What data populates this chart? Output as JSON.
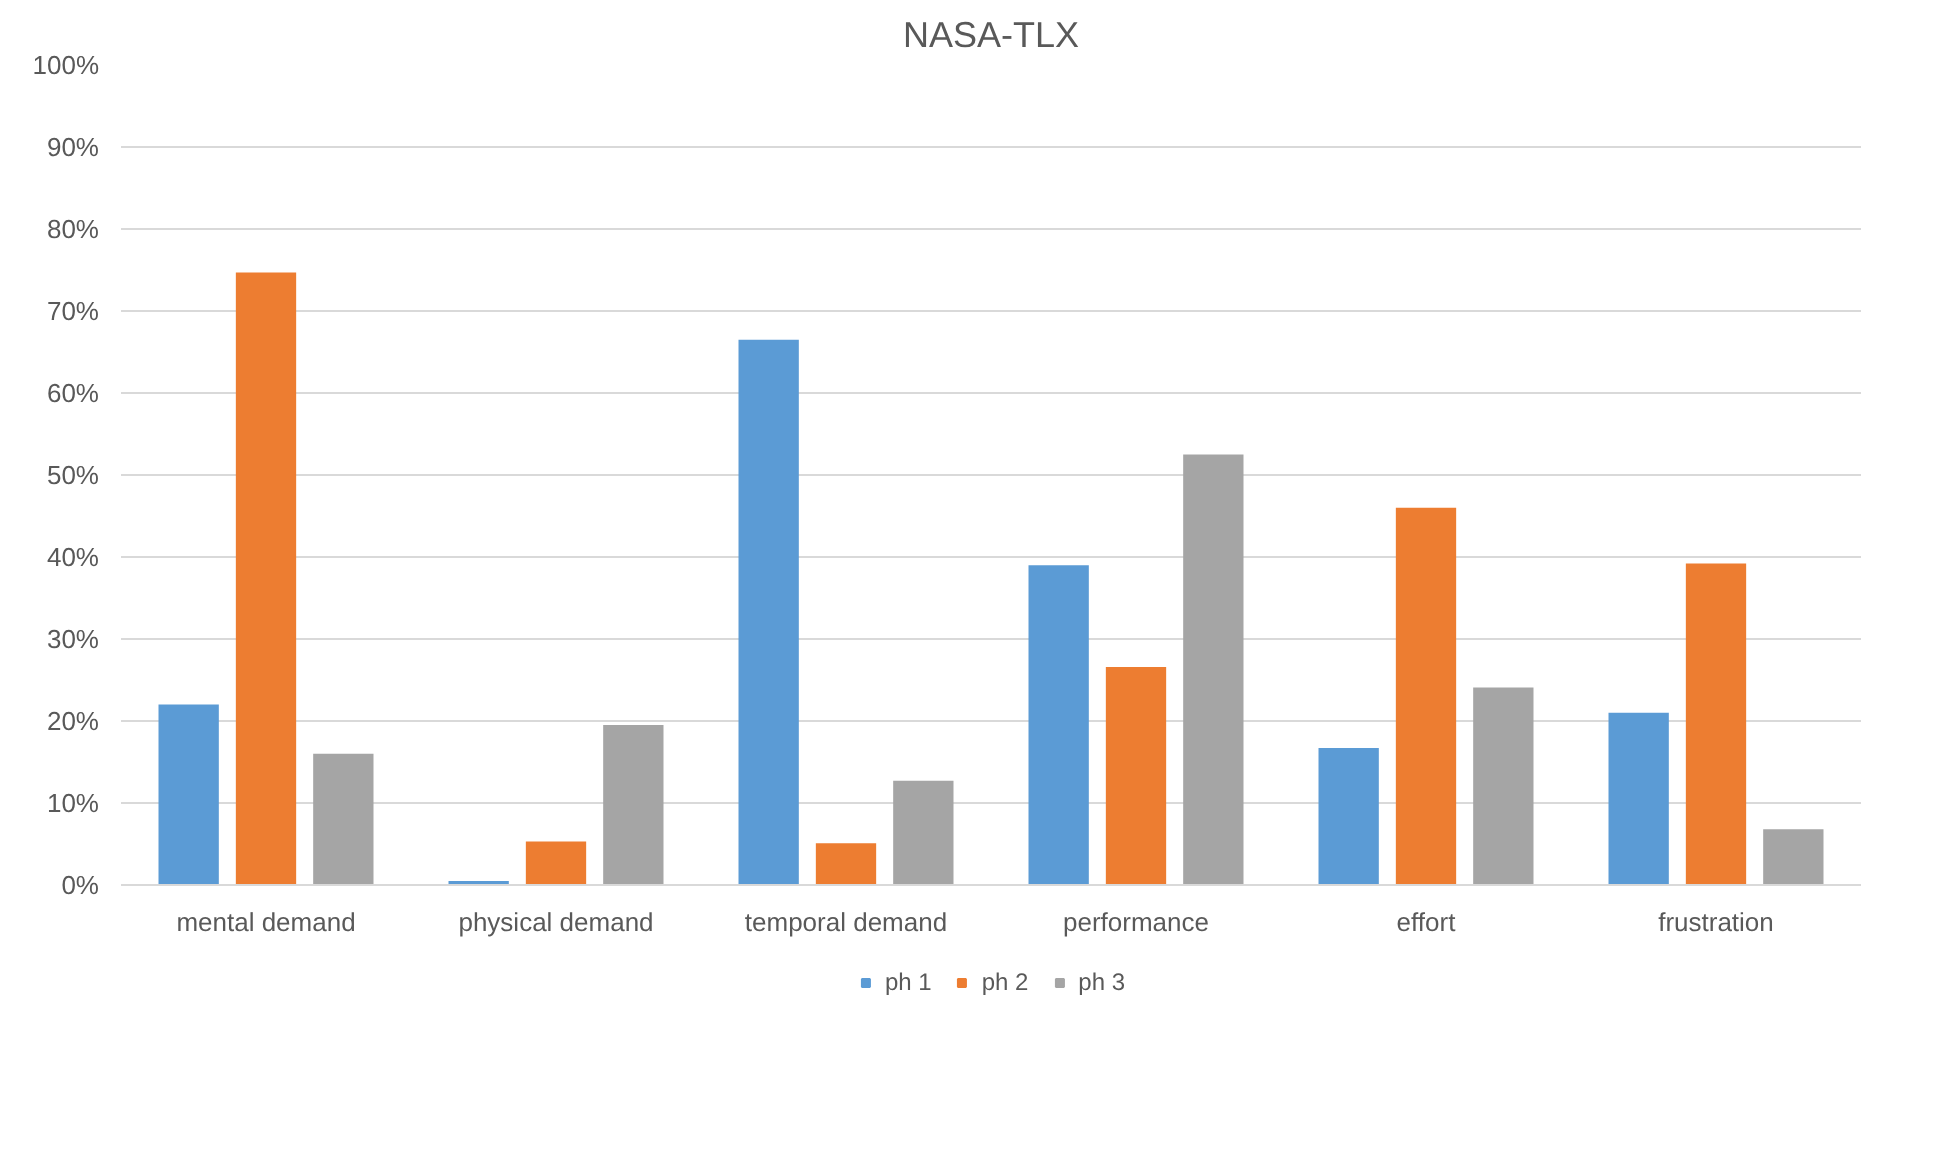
{
  "chart_data": {
    "type": "bar",
    "title": "NASA-TLX",
    "categories": [
      "mental demand",
      "physical demand",
      "temporal demand",
      "performance",
      "effort",
      "frustration"
    ],
    "series": [
      {
        "name": "ph 1",
        "color": "#5b9bd5",
        "values": [
          22,
          0.5,
          66.5,
          39,
          16.7,
          21
        ]
      },
      {
        "name": "ph 2",
        "color": "#ed7d31",
        "values": [
          74.7,
          5.3,
          5.1,
          26.6,
          46,
          39.2
        ]
      },
      {
        "name": "ph 3",
        "color": "#a5a5a5",
        "values": [
          16,
          19.5,
          12.7,
          52.5,
          24.1,
          6.8
        ]
      }
    ],
    "ylim": [
      0,
      100
    ],
    "yticks": [
      {
        "value": 0,
        "label": "0%"
      },
      {
        "value": 10,
        "label": "10%"
      },
      {
        "value": 20,
        "label": "20%"
      },
      {
        "value": 30,
        "label": "30%"
      },
      {
        "value": 40,
        "label": "40%"
      },
      {
        "value": 50,
        "label": "50%"
      },
      {
        "value": 60,
        "label": "60%"
      },
      {
        "value": 70,
        "label": "70%"
      },
      {
        "value": 80,
        "label": "80%"
      },
      {
        "value": 90,
        "label": "90%"
      },
      {
        "value": 100,
        "label": "100%"
      }
    ],
    "grid": "y",
    "legend": "bottom"
  }
}
